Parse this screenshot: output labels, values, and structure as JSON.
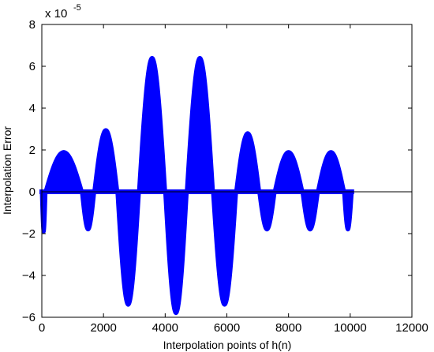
{
  "chart_data": {
    "type": "scatter",
    "xlabel": "Interpolation points of h(n)",
    "ylabel": "Interpolation Error",
    "y_scale_label": "x 10",
    "y_scale_exponent": "-5",
    "xlim": [
      0,
      12000
    ],
    "ylim": [
      -6,
      8
    ],
    "x_ticks": [
      0,
      2000,
      4000,
      6000,
      8000,
      10000,
      12000
    ],
    "y_ticks": [
      -6,
      -4,
      -2,
      0,
      2,
      4,
      6,
      8
    ],
    "x_tick_labels": [
      "0",
      "2000",
      "4000",
      "6000",
      "8000",
      "10000",
      "12000"
    ],
    "y_tick_labels": [
      "−6",
      "−4",
      "−2",
      "0",
      "2",
      "4",
      "6",
      "8"
    ],
    "grid": false,
    "marker_color": "#0000ff",
    "baseline_color": "#000000",
    "baseline_y": 0,
    "envelope_lobes": [
      {
        "x_start": 0,
        "x_end": 120,
        "sign": -1,
        "peak": -1.9
      },
      {
        "x_start": 120,
        "x_end": 1300,
        "sign": 1,
        "peak": 1.9
      },
      {
        "x_start": 1300,
        "x_end": 1700,
        "sign": -1,
        "peak": -1.8
      },
      {
        "x_start": 1700,
        "x_end": 2450,
        "sign": 1,
        "peak": 2.95
      },
      {
        "x_start": 2450,
        "x_end": 3150,
        "sign": -1,
        "peak": -5.4
      },
      {
        "x_start": 3150,
        "x_end": 4000,
        "sign": 1,
        "peak": 6.4
      },
      {
        "x_start": 4000,
        "x_end": 4700,
        "sign": -1,
        "peak": -5.8
      },
      {
        "x_start": 4700,
        "x_end": 5550,
        "sign": 1,
        "peak": 6.4
      },
      {
        "x_start": 5550,
        "x_end": 6300,
        "sign": -1,
        "peak": -5.4
      },
      {
        "x_start": 6300,
        "x_end": 7050,
        "sign": 1,
        "peak": 2.8
      },
      {
        "x_start": 7050,
        "x_end": 7550,
        "sign": -1,
        "peak": -1.8
      },
      {
        "x_start": 7550,
        "x_end": 8450,
        "sign": 1,
        "peak": 1.9
      },
      {
        "x_start": 8450,
        "x_end": 8950,
        "sign": -1,
        "peak": -1.8
      },
      {
        "x_start": 8950,
        "x_end": 9800,
        "sign": 1,
        "peak": 1.9
      },
      {
        "x_start": 9800,
        "x_end": 10050,
        "sign": -1,
        "peak": -1.8
      }
    ]
  }
}
